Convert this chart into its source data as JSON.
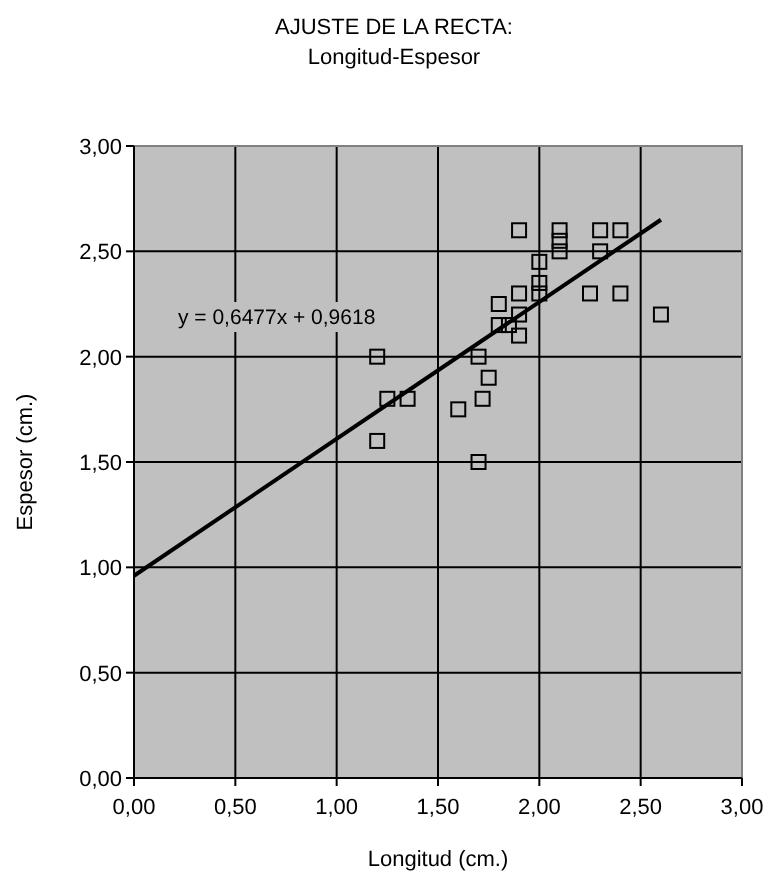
{
  "chart_data": {
    "type": "scatter",
    "title": "AJUSTE DE LA RECTA:",
    "subtitle": "Longitud-Espesor",
    "xlabel": "Longitud (cm.)",
    "ylabel": "Espesor (cm.)",
    "xlim": [
      0,
      3
    ],
    "ylim": [
      0,
      3
    ],
    "xticks": [
      {
        "value": 0,
        "label": "0,00"
      },
      {
        "value": 0.5,
        "label": "0,50"
      },
      {
        "value": 1,
        "label": "1,00"
      },
      {
        "value": 1.5,
        "label": "1,50"
      },
      {
        "value": 2,
        "label": "2,00"
      },
      {
        "value": 2.5,
        "label": "2,50"
      },
      {
        "value": 3,
        "label": "3,00"
      }
    ],
    "yticks": [
      {
        "value": 0,
        "label": "0,00"
      },
      {
        "value": 0.5,
        "label": "0,50"
      },
      {
        "value": 1,
        "label": "1,00"
      },
      {
        "value": 1.5,
        "label": "1,50"
      },
      {
        "value": 2,
        "label": "2,00"
      },
      {
        "value": 2.5,
        "label": "2,50"
      },
      {
        "value": 3,
        "label": "3,00"
      }
    ],
    "grid": true,
    "annotations": [
      "y = 0,6477x + 0,9618"
    ],
    "series": [
      {
        "type": "scatter",
        "color": "#000000",
        "marker": "square",
        "x": [
          1.2,
          1.2,
          1.25,
          1.35,
          1.6,
          1.7,
          1.7,
          1.72,
          1.75,
          1.8,
          1.8,
          1.85,
          1.9,
          1.9,
          1.9,
          1.9,
          2.0,
          2.0,
          2.0,
          2.1,
          2.1,
          2.1,
          2.25,
          2.3,
          2.3,
          2.4,
          2.4,
          2.6
        ],
        "values": [
          2.0,
          1.6,
          1.8,
          1.8,
          1.75,
          2.0,
          1.5,
          1.8,
          1.9,
          2.25,
          2.15,
          2.15,
          2.6,
          2.3,
          2.2,
          2.1,
          2.45,
          2.35,
          2.3,
          2.6,
          2.55,
          2.5,
          2.3,
          2.6,
          2.5,
          2.6,
          2.3,
          2.2
        ]
      },
      {
        "type": "line",
        "color": "#000000",
        "marker": "none",
        "line_style": "solid",
        "x": [
          0,
          2.6
        ],
        "values": [
          0.96,
          2.65
        ]
      }
    ]
  }
}
